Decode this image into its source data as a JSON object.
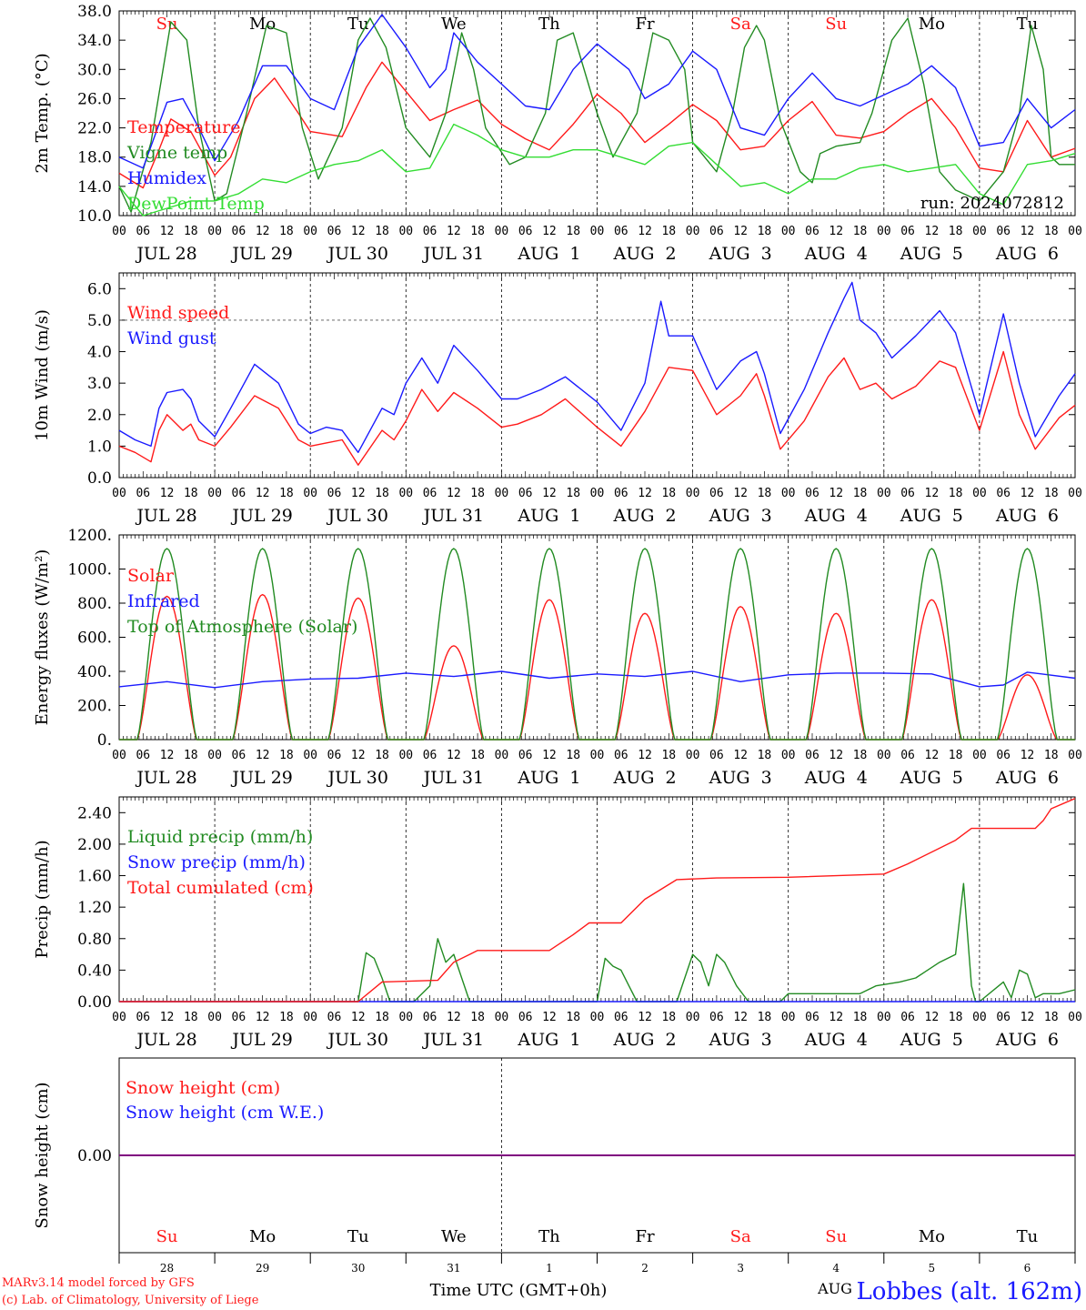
{
  "footer": {
    "credit_line1": "MARv3.14 model forced by GFS",
    "credit_line2": "(c) Lab. of Climatology, University of Liege",
    "xaxis_title": "Time UTC (GMT+0h)",
    "month_label": "AUG",
    "station": "Lobbes (alt. 162m)"
  },
  "colors": {
    "red": "#ff1a1a",
    "blue": "#1a1aff",
    "green": "#228b22",
    "light_green": "#33dd33",
    "purple": "#800080",
    "axis": "#000000"
  },
  "time_axis": {
    "hour_ticks": [
      "00",
      "06",
      "12",
      "18"
    ],
    "final_tick": "00",
    "date_labels": [
      "JUL 28",
      "JUL 29",
      "JUL 30",
      "JUL 31",
      "AUG  1",
      "AUG  2",
      "AUG  3",
      "AUG  4",
      "AUG  5",
      "AUG  6"
    ],
    "weekdays": [
      "Su",
      "Mo",
      "Tu",
      "We",
      "Th",
      "Fr",
      "Sa",
      "Su",
      "Mo",
      "Tu"
    ],
    "weekday_colors": [
      "red",
      "black",
      "black",
      "black",
      "black",
      "black",
      "red",
      "red",
      "black",
      "black"
    ],
    "day_numbers": [
      "28",
      "29",
      "30",
      "31",
      "1",
      "2",
      "3",
      "4",
      "5",
      "6"
    ]
  },
  "chart_data": [
    {
      "type": "line",
      "id": "temperature",
      "ylabel": "2m Temp. (°C)",
      "ylim": [
        10,
        38
      ],
      "yticks": [
        "10.0",
        "14.0",
        "18.0",
        "22.0",
        "26.0",
        "30.0",
        "34.0",
        "38.0"
      ],
      "yticks_values": [
        10,
        14,
        18,
        22,
        26,
        30,
        34,
        38
      ],
      "annotation": "run: 2024072812",
      "x_unit": "hours since JUL 28 00 UTC",
      "series": [
        {
          "name": "Temperature",
          "color": "red",
          "x": [
            0,
            6,
            10,
            13,
            18,
            24,
            28,
            34,
            39,
            45,
            48,
            56,
            62,
            66,
            72,
            78,
            84,
            90,
            96,
            102,
            108,
            114,
            120,
            126,
            132,
            138,
            144,
            150,
            156,
            162,
            168,
            174,
            180,
            186,
            192,
            198,
            204,
            210,
            216,
            222,
            228,
            234,
            240
          ],
          "y": [
            15.8,
            13.8,
            19,
            23.2,
            21.5,
            15.5,
            18,
            26,
            28.8,
            24,
            21.5,
            20.8,
            27.5,
            31,
            27,
            23,
            24.5,
            25.8,
            22.5,
            20.5,
            19,
            22.5,
            26.6,
            24,
            20,
            22.5,
            25.2,
            23,
            19,
            19.5,
            23,
            25.6,
            21,
            20.6,
            21.5,
            24,
            26,
            22,
            16.5,
            16,
            23,
            18,
            19.2
          ]
        },
        {
          "name": "Vigne temp",
          "color": "green",
          "x": [
            0,
            3,
            8,
            13,
            17,
            20,
            24,
            27,
            32,
            37,
            42,
            46,
            50,
            56,
            60,
            63,
            67,
            72,
            78,
            82,
            86,
            89,
            92,
            98,
            102,
            107,
            110,
            114,
            120,
            124,
            130,
            134,
            138,
            142,
            144,
            150,
            154,
            157,
            160,
            162,
            166,
            171,
            174,
            176,
            180,
            186,
            189,
            194,
            198,
            202,
            206,
            210,
            216,
            222,
            226,
            229,
            232,
            234,
            236,
            240
          ],
          "y": [
            14,
            10.5,
            20,
            36.5,
            34,
            22,
            12,
            13,
            24,
            36,
            35,
            22,
            15,
            22,
            34,
            37,
            33,
            22,
            18,
            24,
            35,
            30,
            22,
            17,
            18,
            24,
            34,
            35,
            24,
            18,
            24,
            35,
            34,
            30,
            20,
            16,
            24,
            33,
            36,
            34,
            23,
            16,
            14.5,
            18.5,
            19.5,
            20,
            24,
            34,
            37,
            28,
            16,
            13.5,
            12,
            16,
            24,
            36,
            30,
            18,
            17,
            17
          ]
        },
        {
          "name": "Humidex",
          "color": "blue",
          "x": [
            0,
            6,
            12,
            16,
            20,
            24,
            30,
            36,
            42,
            48,
            54,
            60,
            66,
            72,
            78,
            82,
            84,
            90,
            96,
            102,
            108,
            114,
            120,
            128,
            132,
            138,
            144,
            150,
            156,
            162,
            168,
            174,
            180,
            186,
            192,
            198,
            204,
            210,
            216,
            222,
            228,
            234,
            240
          ],
          "y": [
            18,
            16.5,
            25.5,
            26,
            22,
            17.5,
            23,
            30.5,
            30.5,
            26,
            24.5,
            33,
            37.5,
            33,
            27.5,
            30,
            35,
            31,
            28,
            25,
            24.5,
            30,
            33.5,
            30,
            26,
            28,
            32.5,
            30,
            22,
            21,
            26,
            29.5,
            26,
            25,
            26.5,
            28,
            30.5,
            27.5,
            19.5,
            20,
            26,
            22,
            24.5
          ]
        },
        {
          "name": "DewPoint Temp",
          "color": "light_green",
          "x": [
            0,
            6,
            12,
            18,
            24,
            30,
            36,
            42,
            48,
            54,
            60,
            66,
            72,
            78,
            84,
            90,
            96,
            102,
            108,
            114,
            120,
            126,
            132,
            138,
            144,
            150,
            156,
            162,
            168,
            174,
            180,
            186,
            192,
            198,
            204,
            210,
            216,
            222,
            228,
            234,
            240
          ],
          "y": [
            14,
            10,
            11,
            12,
            12,
            13,
            15,
            14.5,
            16,
            17,
            17.5,
            19,
            16,
            16.5,
            22.5,
            21,
            19,
            18,
            18,
            19,
            19,
            18,
            17,
            19.5,
            20,
            17,
            14,
            14.5,
            13,
            15,
            15,
            16.5,
            17,
            16,
            16.5,
            17,
            13,
            11.5,
            17,
            17.5,
            18.5
          ]
        }
      ]
    },
    {
      "type": "line",
      "id": "wind",
      "ylabel": "10m Wind (m/s)",
      "ylim": [
        0,
        6.5
      ],
      "yticks": [
        "0.0",
        "1.0",
        "2.0",
        "3.0",
        "4.0",
        "5.0",
        "6.0"
      ],
      "yticks_values": [
        0,
        1,
        2,
        3,
        4,
        5,
        6
      ],
      "reference_line": 5.0,
      "series": [
        {
          "name": "Wind speed",
          "color": "red",
          "x": [
            0,
            4,
            8,
            10,
            12,
            16,
            18,
            20,
            24,
            28,
            34,
            40,
            45,
            48,
            52,
            56,
            60,
            66,
            69,
            72,
            76,
            80,
            84,
            90,
            96,
            100,
            106,
            112,
            120,
            126,
            132,
            138,
            144,
            150,
            156,
            160,
            162,
            166,
            172,
            178,
            182,
            186,
            190,
            194,
            200,
            206,
            210,
            216,
            222,
            226,
            230,
            236,
            240
          ],
          "y": [
            1.0,
            0.8,
            0.5,
            1.5,
            2.0,
            1.5,
            1.7,
            1.2,
            1.0,
            1.6,
            2.6,
            2.2,
            1.2,
            1.0,
            1.1,
            1.2,
            0.4,
            1.5,
            1.2,
            1.8,
            2.8,
            2.1,
            2.7,
            2.2,
            1.6,
            1.7,
            2.0,
            2.5,
            1.6,
            1.0,
            2.1,
            3.5,
            3.4,
            2.0,
            2.6,
            3.3,
            2.6,
            0.9,
            1.8,
            3.2,
            3.8,
            2.8,
            3.0,
            2.5,
            2.9,
            3.7,
            3.5,
            1.5,
            4.0,
            2.0,
            0.9,
            1.9,
            2.3
          ]
        },
        {
          "name": "Wind gust",
          "color": "blue",
          "x": [
            0,
            4,
            8,
            10,
            12,
            16,
            18,
            20,
            24,
            28,
            34,
            40,
            45,
            48,
            52,
            56,
            60,
            66,
            69,
            72,
            76,
            80,
            84,
            90,
            96,
            100,
            106,
            112,
            120,
            126,
            132,
            136,
            138,
            144,
            150,
            156,
            160,
            162,
            166,
            172,
            178,
            182,
            184,
            186,
            190,
            194,
            200,
            206,
            210,
            216,
            222,
            226,
            230,
            236,
            240
          ],
          "y": [
            1.5,
            1.2,
            1.0,
            2.2,
            2.7,
            2.8,
            2.5,
            1.8,
            1.3,
            2.2,
            3.6,
            3.0,
            1.7,
            1.4,
            1.6,
            1.5,
            0.8,
            2.2,
            2.0,
            3.0,
            3.8,
            3.0,
            4.2,
            3.4,
            2.5,
            2.5,
            2.8,
            3.2,
            2.4,
            1.5,
            3.0,
            5.6,
            4.5,
            4.5,
            2.8,
            3.7,
            4.0,
            3.3,
            1.4,
            2.8,
            4.6,
            5.7,
            6.2,
            5.0,
            4.6,
            3.8,
            4.5,
            5.3,
            4.6,
            2.0,
            5.2,
            3.0,
            1.3,
            2.6,
            3.3
          ]
        }
      ]
    },
    {
      "type": "line",
      "id": "energy",
      "ylabel": "Energy fluxes (W/m²)",
      "ylim": [
        0,
        1200
      ],
      "yticks": [
        "0.",
        "200.",
        "400.",
        "600.",
        "800.",
        "1000.",
        "1200."
      ],
      "yticks_values": [
        0,
        200,
        400,
        600,
        800,
        1000,
        1200
      ],
      "series": [
        {
          "name": "Solar",
          "color": "red",
          "daily_peak": [
            840,
            850,
            830,
            550,
            820,
            740,
            780,
            740,
            820,
            380
          ]
        },
        {
          "name": "Infrared",
          "color": "blue",
          "x": [
            0,
            12,
            24,
            36,
            48,
            60,
            72,
            84,
            96,
            108,
            120,
            132,
            144,
            156,
            168,
            180,
            192,
            204,
            216,
            222,
            228,
            240
          ],
          "y": [
            310,
            340,
            305,
            340,
            355,
            360,
            390,
            370,
            400,
            360,
            385,
            370,
            400,
            340,
            380,
            390,
            390,
            385,
            310,
            320,
            395,
            360
          ]
        },
        {
          "name": "Top of Atmosphere (Solar)",
          "color": "green",
          "daily_peak": 1120
        }
      ]
    },
    {
      "type": "line",
      "id": "precip",
      "ylabel": "Precip (mm/h)",
      "ylim": [
        0,
        2.6
      ],
      "yticks": [
        "0.00",
        "0.40",
        "0.80",
        "1.20",
        "1.60",
        "2.00",
        "2.40"
      ],
      "yticks_values": [
        0,
        0.4,
        0.8,
        1.2,
        1.6,
        2.0,
        2.4
      ],
      "series": [
        {
          "name": "Liquid precip (mm/h)",
          "color": "green",
          "x": [
            0,
            60,
            62,
            64,
            66,
            68,
            70,
            74,
            78,
            80,
            82,
            84,
            86,
            88,
            90,
            92,
            120,
            122,
            124,
            126,
            128,
            130,
            140,
            144,
            146,
            148,
            150,
            152,
            155,
            158,
            166,
            168,
            186,
            190,
            196,
            200,
            206,
            210,
            212,
            214,
            215,
            216,
            222,
            224,
            226,
            228,
            230,
            232,
            236,
            240
          ],
          "y": [
            0,
            0,
            0.62,
            0.55,
            0.3,
            0,
            0,
            0,
            0.2,
            0.8,
            0.5,
            0.6,
            0.3,
            0,
            0,
            0,
            0,
            0.55,
            0.45,
            0.4,
            0.2,
            0,
            0,
            0.6,
            0.5,
            0.2,
            0.6,
            0.5,
            0.2,
            0,
            0,
            0.1,
            0.1,
            0.2,
            0.25,
            0.3,
            0.5,
            0.6,
            1.5,
            0.2,
            0,
            0,
            0.25,
            0.05,
            0.4,
            0.35,
            0.05,
            0.1,
            0.1,
            0.15
          ]
        },
        {
          "name": "Snow precip (mm/h)",
          "color": "blue",
          "x": [
            0,
            240
          ],
          "y": [
            0,
            0
          ]
        },
        {
          "name": "Total cumulated (cm)",
          "color": "red",
          "x": [
            0,
            60,
            66,
            80,
            84,
            88,
            90,
            108,
            114,
            118,
            126,
            132,
            140,
            150,
            168,
            192,
            198,
            210,
            214,
            216,
            230,
            232,
            234,
            240
          ],
          "y": [
            0,
            0,
            0.25,
            0.27,
            0.5,
            0.6,
            0.65,
            0.65,
            0.85,
            1.0,
            1.0,
            1.3,
            1.55,
            1.57,
            1.58,
            1.62,
            1.75,
            2.05,
            2.2,
            2.2,
            2.2,
            2.3,
            2.45,
            2.58
          ]
        }
      ]
    },
    {
      "type": "line",
      "id": "snow",
      "ylabel": "Snow height (cm)",
      "ylim": [
        -1,
        1
      ],
      "yticks": [
        "0.00"
      ],
      "yticks_values": [
        0
      ],
      "series": [
        {
          "name": "Snow height (cm)",
          "color": "red",
          "x": [
            0,
            240
          ],
          "y": [
            0,
            0
          ]
        },
        {
          "name": "Snow height (cm W.E.)",
          "color": "blue",
          "x": [
            0,
            240
          ],
          "y": [
            0,
            0
          ]
        }
      ]
    }
  ]
}
